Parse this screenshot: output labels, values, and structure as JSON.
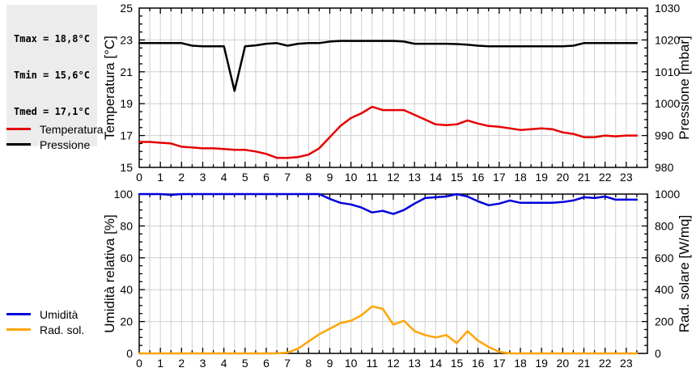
{
  "info_box": {
    "lines": [
      "Tmax = 18,8°C",
      "Tmin = 15,6°C",
      "Tmed = 17,1°C"
    ]
  },
  "colors": {
    "temperature": "#e60000",
    "pressure": "#000000",
    "humidity": "#0000dd",
    "radiation": "#ffa500",
    "grid": "#cfcfcf",
    "axis": "#000000",
    "info_box_bg": "#ececec"
  },
  "chart_data": [
    {
      "type": "line",
      "x_start": 0,
      "x_step": 0.5,
      "x_range": [
        0,
        24
      ],
      "x_tick_labels": [
        "0",
        "1",
        "2",
        "3",
        "4",
        "5",
        "6",
        "7",
        "8",
        "9",
        "10",
        "11",
        "12",
        "13",
        "14",
        "15",
        "16",
        "17",
        "18",
        "19",
        "20",
        "21",
        "22",
        "23"
      ],
      "left_axis": {
        "label": "Temperatura [°C]",
        "range": [
          15,
          25
        ],
        "ticks": [
          15,
          17,
          19,
          21,
          23,
          25
        ]
      },
      "right_axis": {
        "label": "Pressione [mbar]",
        "range": [
          980,
          1030
        ],
        "ticks": [
          980,
          990,
          1000,
          1010,
          1020,
          1030
        ]
      },
      "series": [
        {
          "name": "Temperatura",
          "axis": "left",
          "color_key": "temperature",
          "values": [
            16.6,
            16.6,
            16.55,
            16.5,
            16.3,
            16.25,
            16.2,
            16.2,
            16.15,
            16.1,
            16.1,
            16.0,
            15.85,
            15.6,
            15.6,
            15.65,
            15.8,
            16.2,
            16.9,
            17.6,
            18.1,
            18.4,
            18.8,
            18.6,
            18.6,
            18.6,
            18.3,
            18.0,
            17.7,
            17.65,
            17.7,
            17.95,
            17.75,
            17.6,
            17.55,
            17.45,
            17.35,
            17.4,
            17.45,
            17.4,
            17.2,
            17.1,
            16.9,
            16.9,
            17.0,
            16.95,
            17.0,
            17.0
          ]
        },
        {
          "name": "Pressione",
          "axis": "right",
          "color_key": "pressure",
          "values": [
            1019,
            1019,
            1019,
            1019,
            1019,
            1018.2,
            1018,
            1018,
            1018,
            1004,
            1018,
            1018.3,
            1018.8,
            1019,
            1018.2,
            1018.8,
            1019,
            1019,
            1019.5,
            1019.7,
            1019.7,
            1019.7,
            1019.7,
            1019.7,
            1019.7,
            1019.5,
            1018.8,
            1018.8,
            1018.8,
            1018.8,
            1018.7,
            1018.5,
            1018.2,
            1018,
            1018,
            1018,
            1018,
            1018,
            1018,
            1018,
            1018,
            1018.2,
            1019,
            1019,
            1019,
            1019,
            1019,
            1019
          ]
        }
      ],
      "legend": [
        {
          "label": "Temperatura",
          "color_key": "temperature"
        },
        {
          "label": "Pressione",
          "color_key": "pressure"
        }
      ]
    },
    {
      "type": "line",
      "x_start": 0,
      "x_step": 0.5,
      "x_range": [
        0,
        24
      ],
      "x_tick_labels": [
        "0",
        "1",
        "2",
        "3",
        "4",
        "5",
        "6",
        "7",
        "8",
        "9",
        "10",
        "11",
        "12",
        "13",
        "14",
        "15",
        "16",
        "17",
        "18",
        "19",
        "20",
        "21",
        "22",
        "23"
      ],
      "left_axis": {
        "label": "Umidità relativa [%]",
        "range": [
          0,
          100
        ],
        "ticks": [
          0,
          20,
          40,
          60,
          80,
          100
        ]
      },
      "right_axis": {
        "label": "Rad. solare [W/mq]",
        "range": [
          0,
          1000
        ],
        "ticks": [
          0,
          200,
          400,
          600,
          800,
          1000
        ]
      },
      "series": [
        {
          "name": "Umidità",
          "axis": "left",
          "color_key": "humidity",
          "values": [
            100,
            100,
            100,
            99.5,
            100,
            100,
            100,
            100,
            100,
            100,
            100,
            100,
            100,
            100,
            100,
            100,
            100,
            100,
            97,
            94.5,
            93.5,
            91.5,
            88.5,
            89.5,
            87.5,
            90,
            94,
            97.5,
            98,
            98.5,
            100,
            98.5,
            95.5,
            93,
            94,
            96,
            94.5,
            94.5,
            94.5,
            94.5,
            95,
            96,
            98,
            97.5,
            98.5,
            96.5,
            96.5,
            96.5
          ]
        },
        {
          "name": "Rad. sol.",
          "axis": "right",
          "color_key": "radiation",
          "values": [
            0,
            0,
            0,
            0,
            0,
            0,
            0,
            0,
            0,
            0,
            0,
            0,
            0,
            0,
            5,
            30,
            75,
            120,
            155,
            190,
            205,
            240,
            295,
            280,
            180,
            205,
            140,
            115,
            100,
            115,
            65,
            140,
            80,
            40,
            10,
            0,
            0,
            0,
            0,
            0,
            0,
            0,
            0,
            0,
            0,
            0,
            0,
            0
          ]
        }
      ],
      "legend": [
        {
          "label": "Umidità",
          "color_key": "humidity"
        },
        {
          "label": "Rad. sol.",
          "color_key": "radiation"
        }
      ]
    }
  ]
}
